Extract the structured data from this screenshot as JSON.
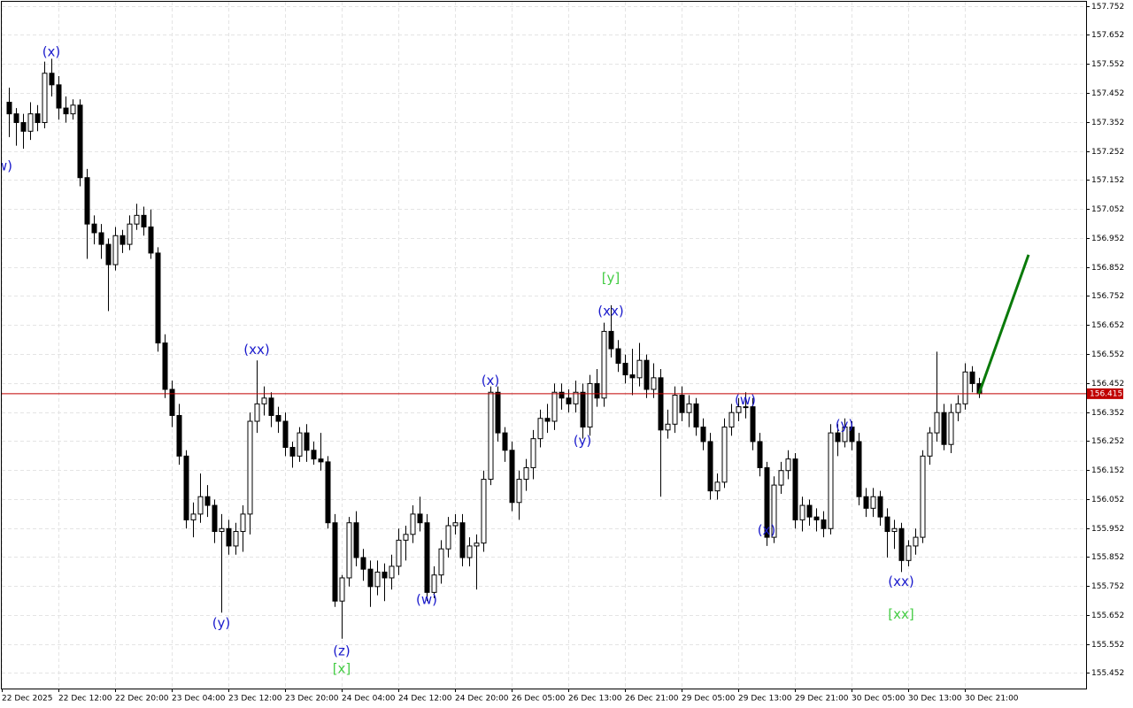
{
  "chart_data": {
    "type": "candlestick",
    "ylim": [
      155.3985,
      157.7725
    ],
    "yticks": [
      157.752,
      157.652,
      157.552,
      157.452,
      157.352,
      157.252,
      157.152,
      157.052,
      156.952,
      156.852,
      156.752,
      156.652,
      156.552,
      156.452,
      156.352,
      156.252,
      156.152,
      156.052,
      155.952,
      155.852,
      155.752,
      155.652,
      155.552,
      155.452
    ],
    "x_labels": [
      "22 Dec 2025",
      "22 Dec 12:00",
      "22 Dec 20:00",
      "23 Dec 04:00",
      "23 Dec 12:00",
      "23 Dec 20:00",
      "24 Dec 04:00",
      "24 Dec 12:00",
      "24 Dec 20:00",
      "26 Dec 05:00",
      "26 Dec 13:00",
      "26 Dec 21:00",
      "29 Dec 05:00",
      "29 Dec 13:00",
      "29 Dec 21:00",
      "30 Dec 05:00",
      "30 Dec 13:00",
      "30 Dec 21:00"
    ],
    "grid": true,
    "current_price": 156.415,
    "current_price_color": "#c00000",
    "up_color": "#ffffff",
    "down_color": "#000000",
    "candles": [
      [
        157.42,
        157.47,
        157.3,
        157.38
      ],
      [
        157.38,
        157.4,
        157.27,
        157.35
      ],
      [
        157.35,
        157.38,
        157.26,
        157.32
      ],
      [
        157.32,
        157.42,
        157.29,
        157.38
      ],
      [
        157.38,
        157.41,
        157.32,
        157.35
      ],
      [
        157.35,
        157.56,
        157.33,
        157.52
      ],
      [
        157.52,
        157.57,
        157.44,
        157.48
      ],
      [
        157.48,
        157.51,
        157.36,
        157.4
      ],
      [
        157.4,
        157.44,
        157.35,
        157.38
      ],
      [
        157.38,
        157.43,
        157.36,
        157.41
      ],
      [
        157.41,
        157.43,
        157.13,
        157.16
      ],
      [
        157.16,
        157.19,
        156.88,
        157.0
      ],
      [
        157.0,
        157.03,
        156.93,
        156.97
      ],
      [
        156.97,
        157.0,
        156.88,
        156.93
      ],
      [
        156.93,
        156.95,
        156.7,
        156.86
      ],
      [
        156.86,
        156.99,
        156.84,
        156.96
      ],
      [
        156.96,
        156.98,
        156.9,
        156.93
      ],
      [
        156.93,
        157.03,
        156.91,
        157.0
      ],
      [
        157.0,
        157.07,
        156.98,
        157.03
      ],
      [
        157.03,
        157.06,
        156.96,
        156.99
      ],
      [
        156.99,
        157.05,
        156.88,
        156.9
      ],
      [
        156.9,
        156.92,
        156.56,
        156.59
      ],
      [
        156.59,
        156.62,
        156.4,
        156.43
      ],
      [
        156.43,
        156.46,
        156.3,
        156.34
      ],
      [
        156.34,
        156.38,
        156.17,
        156.2
      ],
      [
        156.2,
        156.22,
        155.95,
        155.98
      ],
      [
        155.98,
        156.04,
        155.92,
        156.0
      ],
      [
        156.0,
        156.14,
        155.97,
        156.06
      ],
      [
        156.06,
        156.1,
        155.99,
        156.03
      ],
      [
        156.03,
        156.05,
        155.9,
        155.94
      ],
      [
        155.94,
        156.0,
        155.66,
        155.95
      ],
      [
        155.95,
        155.98,
        155.86,
        155.89
      ],
      [
        155.89,
        155.97,
        155.86,
        155.94
      ],
      [
        155.94,
        156.03,
        155.87,
        156.0
      ],
      [
        156.0,
        156.35,
        155.93,
        156.32
      ],
      [
        156.32,
        156.53,
        156.28,
        156.38
      ],
      [
        156.38,
        156.44,
        156.34,
        156.4
      ],
      [
        156.4,
        156.42,
        156.3,
        156.34
      ],
      [
        156.34,
        156.37,
        156.28,
        156.32
      ],
      [
        156.32,
        156.35,
        156.2,
        156.23
      ],
      [
        156.23,
        156.25,
        156.16,
        156.2
      ],
      [
        156.2,
        156.3,
        156.18,
        156.28
      ],
      [
        156.28,
        156.31,
        156.18,
        156.22
      ],
      [
        156.22,
        156.25,
        156.17,
        156.19
      ],
      [
        156.19,
        156.28,
        156.15,
        156.18
      ],
      [
        156.18,
        156.2,
        155.95,
        155.97
      ],
      [
        155.97,
        156.0,
        155.68,
        155.7
      ],
      [
        155.7,
        155.79,
        155.57,
        155.78
      ],
      [
        155.78,
        155.99,
        155.75,
        155.97
      ],
      [
        155.97,
        156.01,
        155.82,
        155.85
      ],
      [
        155.85,
        155.88,
        155.77,
        155.81
      ],
      [
        155.81,
        155.84,
        155.68,
        155.75
      ],
      [
        155.75,
        155.84,
        155.72,
        155.8
      ],
      [
        155.8,
        155.83,
        155.7,
        155.78
      ],
      [
        155.78,
        155.86,
        155.74,
        155.82
      ],
      [
        155.82,
        155.95,
        155.79,
        155.91
      ],
      [
        155.91,
        155.96,
        155.84,
        155.93
      ],
      [
        155.93,
        156.03,
        155.9,
        156.0
      ],
      [
        156.0,
        156.06,
        155.94,
        155.97
      ],
      [
        155.97,
        156.0,
        155.7,
        155.73
      ],
      [
        155.73,
        155.82,
        155.71,
        155.79
      ],
      [
        155.79,
        155.91,
        155.76,
        155.88
      ],
      [
        155.88,
        155.99,
        155.85,
        155.96
      ],
      [
        155.96,
        156.0,
        155.93,
        155.97
      ],
      [
        155.97,
        156.0,
        155.82,
        155.85
      ],
      [
        155.85,
        155.92,
        155.82,
        155.89
      ],
      [
        155.89,
        155.93,
        155.74,
        155.9
      ],
      [
        155.9,
        156.15,
        155.87,
        156.12
      ],
      [
        156.12,
        156.44,
        156.1,
        156.42
      ],
      [
        156.42,
        156.44,
        156.25,
        156.28
      ],
      [
        156.28,
        156.3,
        156.18,
        156.22
      ],
      [
        156.22,
        156.25,
        156.01,
        156.04
      ],
      [
        156.04,
        156.15,
        155.98,
        156.12
      ],
      [
        156.12,
        156.19,
        156.08,
        156.16
      ],
      [
        156.16,
        156.29,
        156.12,
        156.26
      ],
      [
        156.26,
        156.36,
        156.23,
        156.33
      ],
      [
        156.33,
        156.38,
        156.28,
        156.32
      ],
      [
        156.32,
        156.45,
        156.29,
        156.42
      ],
      [
        156.42,
        156.45,
        156.36,
        156.4
      ],
      [
        156.4,
        156.43,
        156.35,
        156.38
      ],
      [
        156.38,
        156.46,
        156.35,
        156.42
      ],
      [
        156.42,
        156.45,
        156.26,
        156.3
      ],
      [
        156.3,
        156.48,
        156.27,
        156.45
      ],
      [
        156.45,
        156.5,
        156.37,
        156.4
      ],
      [
        156.4,
        156.66,
        156.37,
        156.63
      ],
      [
        156.63,
        156.72,
        156.54,
        156.57
      ],
      [
        156.57,
        156.6,
        156.49,
        156.52
      ],
      [
        156.52,
        156.55,
        156.45,
        156.48
      ],
      [
        156.48,
        156.57,
        156.41,
        156.47
      ],
      [
        156.47,
        156.59,
        156.44,
        156.53
      ],
      [
        156.53,
        156.55,
        156.4,
        156.43
      ],
      [
        156.43,
        156.52,
        156.4,
        156.47
      ],
      [
        156.47,
        156.5,
        156.06,
        156.29
      ],
      [
        156.29,
        156.36,
        156.26,
        156.31
      ],
      [
        156.31,
        156.44,
        156.28,
        156.41
      ],
      [
        156.41,
        156.44,
        156.32,
        156.35
      ],
      [
        156.35,
        156.41,
        156.3,
        156.38
      ],
      [
        156.38,
        156.4,
        156.27,
        156.3
      ],
      [
        156.3,
        156.33,
        156.22,
        156.25
      ],
      [
        156.25,
        156.28,
        156.05,
        156.08
      ],
      [
        156.08,
        156.14,
        156.05,
        156.11
      ],
      [
        156.11,
        156.33,
        156.09,
        156.3
      ],
      [
        156.3,
        156.38,
        156.27,
        156.35
      ],
      [
        156.35,
        156.4,
        156.32,
        156.37
      ],
      [
        156.37,
        156.42,
        156.33,
        156.37
      ],
      [
        156.37,
        156.4,
        156.22,
        156.25
      ],
      [
        156.25,
        156.28,
        156.13,
        156.16
      ],
      [
        156.16,
        156.18,
        155.89,
        155.92
      ],
      [
        155.92,
        156.13,
        155.9,
        156.1
      ],
      [
        156.1,
        156.18,
        156.07,
        156.15
      ],
      [
        156.15,
        156.22,
        156.12,
        156.19
      ],
      [
        156.19,
        156.21,
        155.95,
        155.98
      ],
      [
        155.98,
        156.06,
        155.94,
        156.03
      ],
      [
        156.03,
        156.05,
        155.96,
        155.99
      ],
      [
        155.99,
        156.02,
        155.94,
        155.98
      ],
      [
        155.98,
        156.01,
        155.92,
        155.95
      ],
      [
        155.95,
        156.31,
        155.93,
        156.28
      ],
      [
        156.28,
        156.31,
        156.2,
        156.25
      ],
      [
        156.25,
        156.33,
        156.23,
        156.3
      ],
      [
        156.3,
        156.32,
        156.22,
        156.25
      ],
      [
        156.25,
        156.28,
        156.03,
        156.06
      ],
      [
        156.06,
        156.09,
        155.99,
        156.02
      ],
      [
        156.02,
        156.09,
        155.99,
        156.06
      ],
      [
        156.06,
        156.08,
        155.96,
        155.99
      ],
      [
        155.99,
        156.02,
        155.85,
        155.94
      ],
      [
        155.94,
        155.98,
        155.88,
        155.95
      ],
      [
        155.95,
        155.97,
        155.8,
        155.84
      ],
      [
        155.84,
        155.91,
        155.82,
        155.89
      ],
      [
        155.89,
        155.95,
        155.86,
        155.92
      ],
      [
        155.92,
        156.22,
        155.9,
        156.2
      ],
      [
        156.2,
        156.3,
        156.17,
        156.28
      ],
      [
        156.28,
        156.56,
        156.25,
        156.35
      ],
      [
        156.35,
        156.38,
        156.22,
        156.24
      ],
      [
        156.24,
        156.38,
        156.21,
        156.35
      ],
      [
        156.35,
        156.41,
        156.32,
        156.38
      ],
      [
        156.38,
        156.52,
        156.36,
        156.49
      ],
      [
        156.49,
        156.51,
        156.42,
        156.45
      ],
      [
        156.45,
        156.47,
        156.4,
        156.415
      ]
    ],
    "annotations": [
      {
        "text": "(w)",
        "index": -1,
        "price": 157.199,
        "color": "#1a1acc"
      },
      {
        "text": "(x)",
        "index": 6,
        "price": 157.593,
        "color": "#1a1acc"
      },
      {
        "text": "(y)",
        "index": 30,
        "price": 155.623,
        "color": "#1a1acc"
      },
      {
        "text": "(xx)",
        "index": 35,
        "price": 156.565,
        "color": "#1a1acc"
      },
      {
        "text": "(z)",
        "index": 47,
        "price": 155.527,
        "color": "#1a1acc"
      },
      {
        "text": "[x]",
        "index": 47,
        "price": 155.465,
        "color": "#44cc44"
      },
      {
        "text": "(w)",
        "index": 59,
        "price": 155.704,
        "color": "#1a1acc"
      },
      {
        "text": "(x)",
        "index": 68,
        "price": 156.459,
        "color": "#1a1acc"
      },
      {
        "text": "(y)",
        "index": 81,
        "price": 156.251,
        "color": "#1a1acc"
      },
      {
        "text": "(xx)",
        "index": 85,
        "price": 156.698,
        "color": "#1a1acc"
      },
      {
        "text": "[y]",
        "index": 85,
        "price": 156.813,
        "color": "#44cc44"
      },
      {
        "text": "(w)",
        "index": 104,
        "price": 156.391,
        "color": "#1a1acc"
      },
      {
        "text": "(x)",
        "index": 107,
        "price": 155.943,
        "color": "#1a1acc"
      },
      {
        "text": "(y)",
        "index": 118,
        "price": 156.307,
        "color": "#1a1acc"
      },
      {
        "text": "(xx)",
        "index": 126,
        "price": 155.766,
        "color": "#1a1acc"
      },
      {
        "text": "[xx]",
        "index": 126,
        "price": 155.654,
        "color": "#44cc44"
      }
    ],
    "forecast": {
      "from_index": 137,
      "from_price": 156.415,
      "to_index": 144,
      "to_price": 156.894,
      "color": "#0a7a0a"
    }
  }
}
